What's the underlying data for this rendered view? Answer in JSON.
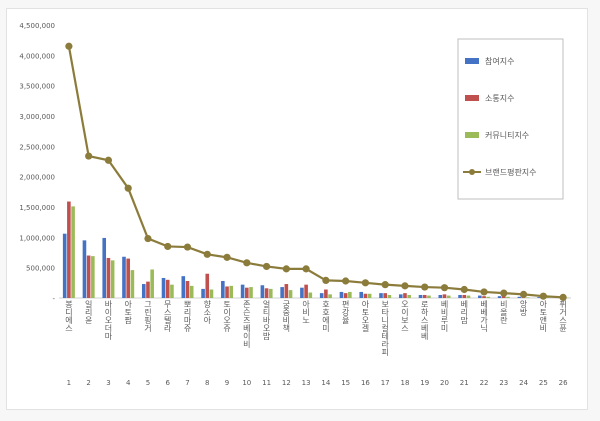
{
  "chart_data": {
    "type": "bar",
    "yticks": [
      "-",
      "500,000",
      "1,000,000",
      "1,500,000",
      "2,000,000",
      "2,500,000",
      "3,000,000",
      "3,500,000",
      "4,000,000",
      "4,500,000"
    ],
    "ylim": [
      0,
      4500000
    ],
    "categories": [
      "봉디에스",
      "일리윤",
      "바이오더마",
      "아토팜",
      "그린핑거",
      "무스텔라",
      "뽀리마쥬",
      "향소아",
      "토이오쥬",
      "존슨즈베이비",
      "얼티바오밥",
      "궁중비책",
      "아비노",
      "호호에미",
      "편강율",
      "아토오겔",
      "보타니컬테라피",
      "오이보스",
      "로하스베베",
      "베비루미",
      "베리맘",
      "베베가닉",
      "비올란",
      "앙방",
      "아토앤비",
      "퓌거스퓬"
    ],
    "ranks": [
      "1",
      "2",
      "3",
      "4",
      "5",
      "6",
      "7",
      "8",
      "9",
      "10",
      "11",
      "12",
      "13",
      "14",
      "15",
      "16",
      "17",
      "18",
      "19",
      "20",
      "21",
      "22",
      "23",
      "24",
      "25",
      "26"
    ],
    "series": [
      {
        "name": "참여지수",
        "color": "#4472c4",
        "values": [
          1060000,
          950000,
          990000,
          680000,
          230000,
          330000,
          360000,
          150000,
          280000,
          220000,
          210000,
          180000,
          170000,
          80000,
          100000,
          100000,
          80000,
          60000,
          50000,
          50000,
          50000,
          40000,
          30000,
          20000,
          15000,
          10000
        ]
      },
      {
        "name": "소통지수",
        "color": "#c0504d",
        "values": [
          1590000,
          700000,
          660000,
          650000,
          270000,
          300000,
          280000,
          400000,
          190000,
          170000,
          160000,
          230000,
          220000,
          140000,
          80000,
          70000,
          80000,
          80000,
          50000,
          60000,
          50000,
          30000,
          30000,
          20000,
          10000,
          5000
        ]
      },
      {
        "name": "커뮤니티지수",
        "color": "#9bbb59",
        "values": [
          1510000,
          690000,
          620000,
          460000,
          470000,
          220000,
          200000,
          140000,
          200000,
          180000,
          150000,
          130000,
          90000,
          60000,
          100000,
          70000,
          50000,
          50000,
          40000,
          40000,
          40000,
          20000,
          20000,
          10000,
          10000,
          5000
        ]
      }
    ],
    "line_series": {
      "name": "브랜드평판지수",
      "color": "#8c7c3b",
      "values": [
        4150000,
        2340000,
        2270000,
        1810000,
        980000,
        850000,
        840000,
        720000,
        670000,
        580000,
        520000,
        480000,
        480000,
        290000,
        280000,
        250000,
        220000,
        200000,
        180000,
        170000,
        140000,
        100000,
        80000,
        60000,
        30000,
        10000
      ]
    }
  }
}
